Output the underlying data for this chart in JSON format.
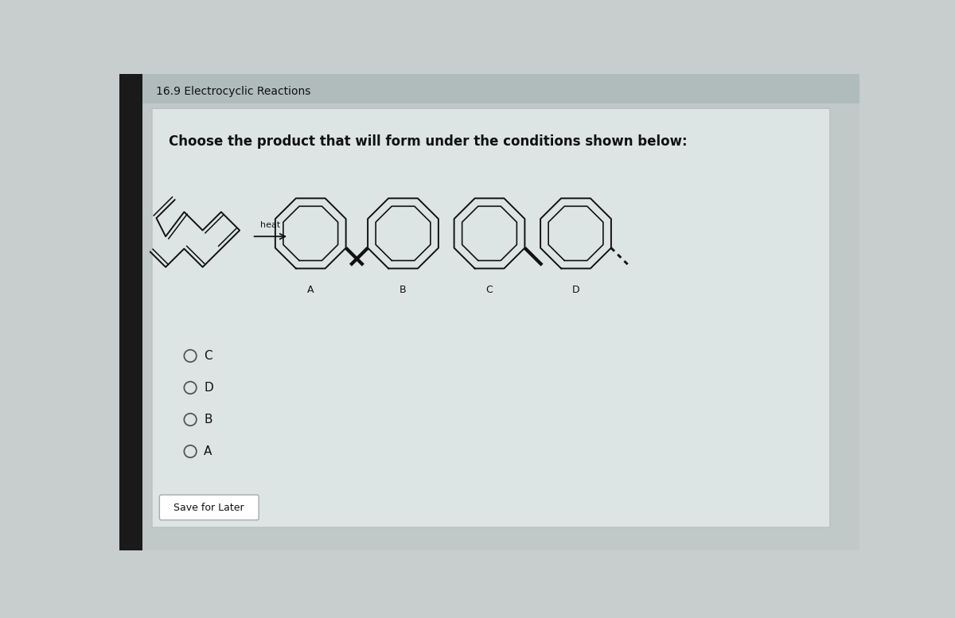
{
  "title": "16.9 Electrocyclic Reactions",
  "question": "Choose the product that will form under the conditions shown below:",
  "heat_label": "heat",
  "answer_options": [
    "C",
    "D",
    "B",
    "A"
  ],
  "save_button": "Save for Later",
  "bg_outer": "#888888",
  "bg_left_bar": "#222222",
  "bg_main": "#c8cece",
  "bg_card": "#dde2e2",
  "text_color": "#111111",
  "line_color": "#111111",
  "title_fontsize": 10,
  "question_fontsize": 12,
  "label_fontsize": 9,
  "option_fontsize": 11
}
